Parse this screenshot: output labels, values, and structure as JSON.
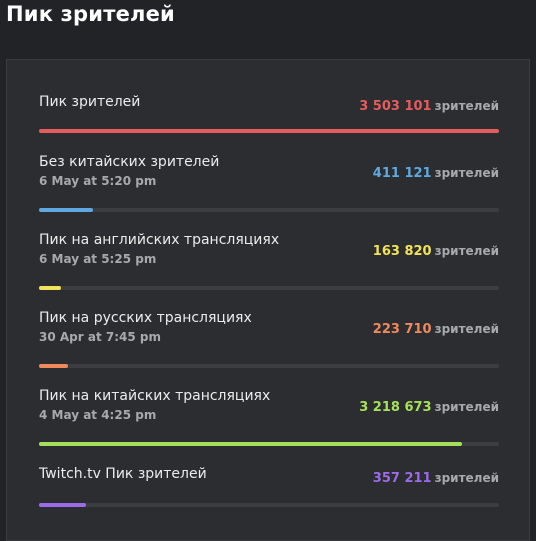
{
  "title": "Пик зрителей",
  "unit": "зрителей",
  "stats": [
    {
      "label": "Пик зрителей",
      "date": "",
      "value": "3 503 101",
      "fraction": 1.0,
      "color": "#e55c5c"
    },
    {
      "label": "Без китайских зрителей",
      "date": "6 May at 5:20 pm",
      "value": "411 121",
      "fraction": 0.117,
      "color": "#5fa8e0"
    },
    {
      "label": "Пик на английских трансляциях",
      "date": "6 May at 5:25 pm",
      "value": "163 820",
      "fraction": 0.047,
      "color": "#f2e25a"
    },
    {
      "label": "Пик на русских трансляциях",
      "date": "30 Apr at 7:45 pm",
      "value": "223 710",
      "fraction": 0.064,
      "color": "#f08a5d"
    },
    {
      "label": "Пик на китайских трансляциях",
      "date": "4 May at 4:25 pm",
      "value": "3 218 673",
      "fraction": 0.919,
      "color": "#a6e05a"
    },
    {
      "label": "Twitch.tv Пик зрителей",
      "date": "",
      "value": "357 211",
      "fraction": 0.102,
      "color": "#9b6be8"
    }
  ]
}
